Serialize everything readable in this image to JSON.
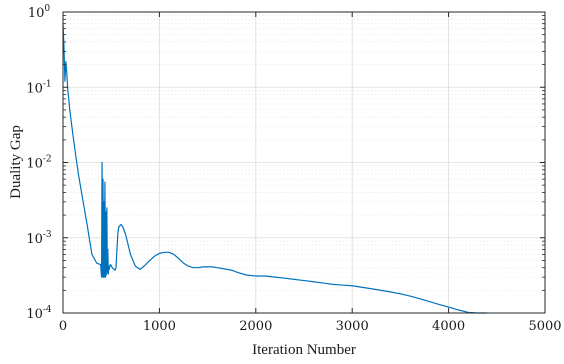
{
  "chart_data": {
    "type": "line",
    "title": "",
    "xlabel": "Iteration Number",
    "ylabel": "Duality Gap",
    "xlim": [
      0,
      5000
    ],
    "ylim": [
      0.0001,
      1
    ],
    "yscale": "log",
    "grid": true,
    "minor_grid": true,
    "x_ticks": [
      "0",
      "1000",
      "2000",
      "3000",
      "4000",
      "5000"
    ],
    "y_ticks": [
      {
        "base": "10",
        "exp": "-4"
      },
      {
        "base": "10",
        "exp": "-3"
      },
      {
        "base": "10",
        "exp": "-2"
      },
      {
        "base": "10",
        "exp": "-1"
      },
      {
        "base": "10",
        "exp": "0"
      }
    ],
    "line_color": "#0072bd",
    "series": [
      {
        "x": [
          0,
          10,
          20,
          30,
          40,
          50,
          60,
          70,
          80,
          100,
          130,
          160,
          200,
          250,
          300,
          350,
          390,
          400,
          405,
          410,
          415,
          420,
          425,
          430,
          435,
          440,
          445,
          450,
          455,
          460,
          465,
          470,
          475,
          480,
          490,
          500,
          510,
          520,
          530,
          540,
          550,
          560,
          570,
          580,
          600,
          620,
          650,
          700,
          750,
          800,
          850,
          900,
          950,
          1000,
          1050,
          1100,
          1150,
          1200,
          1250,
          1300,
          1350,
          1400,
          1450,
          1500,
          1550,
          1600,
          1650,
          1700,
          1750,
          1800,
          1900,
          2000,
          2100,
          2200,
          2300,
          2400,
          2500,
          2600,
          2700,
          2800,
          2900,
          3000,
          3100,
          3200,
          3300,
          3400,
          3500,
          3600,
          3700,
          3800,
          3900,
          4000,
          4100,
          4200,
          4300,
          4400
        ],
        "y": [
          0.7,
          0.35,
          0.12,
          0.22,
          0.15,
          0.09,
          0.07,
          0.05,
          0.04,
          0.025,
          0.013,
          0.007,
          0.0035,
          0.0015,
          0.0006,
          0.00046,
          0.00044,
          0.0003,
          0.01,
          0.0003,
          0.006,
          0.0003,
          0.003,
          0.0003,
          0.0055,
          0.0003,
          0.0022,
          0.00032,
          0.0025,
          0.00034,
          0.0007,
          0.00033,
          0.00042,
          0.00038,
          0.00044,
          0.00043,
          0.0004,
          0.00039,
          0.00038,
          0.00037,
          0.0004,
          0.0007,
          0.0012,
          0.0014,
          0.0015,
          0.0014,
          0.0011,
          0.0006,
          0.00042,
          0.00038,
          0.00043,
          0.0005,
          0.00057,
          0.00062,
          0.00064,
          0.00064,
          0.0006,
          0.00053,
          0.00046,
          0.00042,
          0.0004,
          0.0004,
          0.00041,
          0.00041,
          0.00041,
          0.0004,
          0.00039,
          0.00038,
          0.00037,
          0.00035,
          0.00032,
          0.00031,
          0.00031,
          0.0003,
          0.00029,
          0.00028,
          0.00027,
          0.00026,
          0.00025,
          0.00024,
          0.000235,
          0.00023,
          0.00022,
          0.00021,
          0.0002,
          0.00019,
          0.00018,
          0.000168,
          0.000155,
          0.000142,
          0.00013,
          0.00012,
          0.00011,
          0.000102,
          0.0001,
          0.0001
        ]
      }
    ]
  }
}
